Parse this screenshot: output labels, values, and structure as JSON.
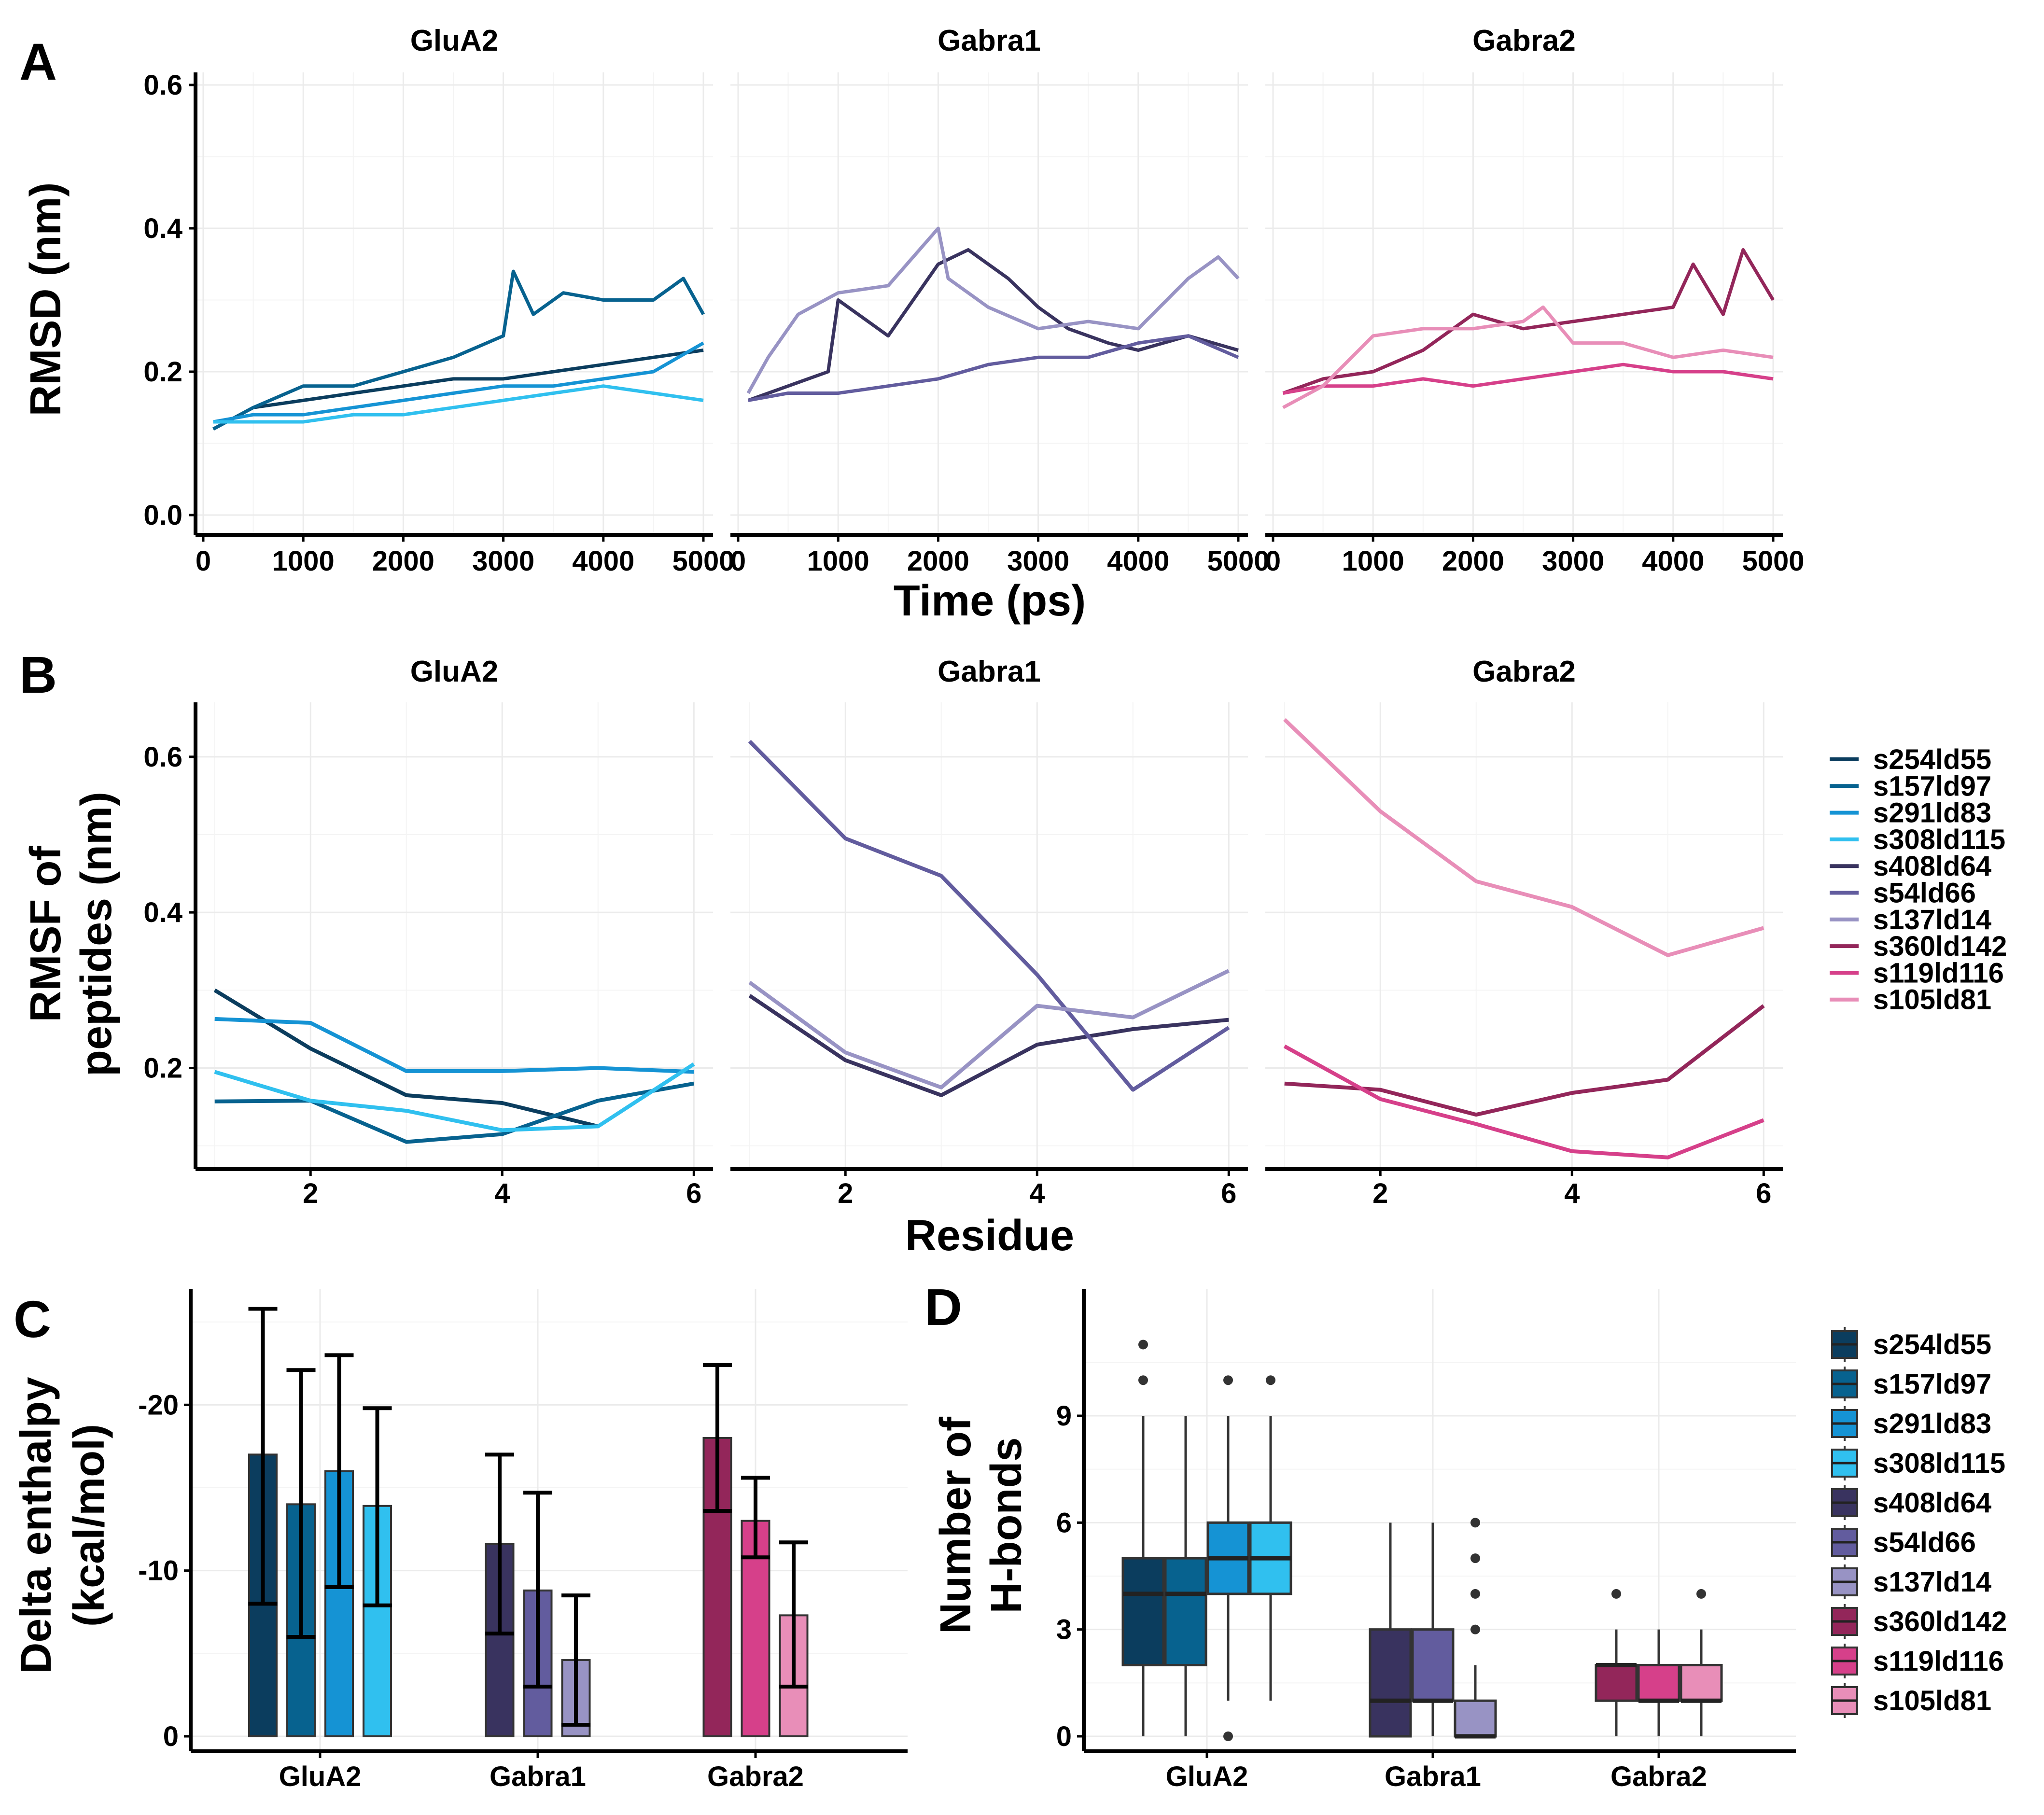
{
  "chart_data": [
    {
      "panel": "A",
      "type": "line",
      "title": "",
      "facets": [
        "GluA2",
        "Gabra1",
        "Gabra2"
      ],
      "xlabel": "Time (ps)",
      "ylabel": "RMSD (nm)",
      "xlim": [
        0,
        5000
      ],
      "ylim": [
        0,
        0.6
      ],
      "xticks": [
        0,
        1000,
        2000,
        3000,
        4000,
        5000
      ],
      "yticks": [
        0.0,
        0.2,
        0.4,
        0.6
      ],
      "ytick_labels": [
        "0.0",
        "0.2",
        "0.4",
        "0.6"
      ],
      "series": [
        {
          "name": "s254ld55",
          "facet": "GluA2",
          "x": [
            100,
            500,
            1000,
            1500,
            2000,
            2500,
            3000,
            3500,
            4000,
            4500,
            5000
          ],
          "values": [
            0.12,
            0.15,
            0.16,
            0.17,
            0.18,
            0.19,
            0.19,
            0.2,
            0.21,
            0.22,
            0.23
          ]
        },
        {
          "name": "s157ld97",
          "facet": "GluA2",
          "x": [
            100,
            500,
            1000,
            1500,
            2000,
            2500,
            3000,
            3100,
            3300,
            3600,
            4000,
            4500,
            4800,
            5000
          ],
          "values": [
            0.12,
            0.15,
            0.18,
            0.18,
            0.2,
            0.22,
            0.25,
            0.34,
            0.28,
            0.31,
            0.3,
            0.3,
            0.33,
            0.28
          ]
        },
        {
          "name": "s291ld83",
          "facet": "GluA2",
          "x": [
            100,
            500,
            1000,
            1500,
            2000,
            2500,
            3000,
            3500,
            4000,
            4500,
            5000
          ],
          "values": [
            0.13,
            0.14,
            0.14,
            0.15,
            0.16,
            0.17,
            0.18,
            0.18,
            0.19,
            0.2,
            0.24
          ]
        },
        {
          "name": "s308ld115",
          "facet": "GluA2",
          "x": [
            100,
            500,
            1000,
            1500,
            2000,
            2500,
            3000,
            3500,
            4000,
            4500,
            5000
          ],
          "values": [
            0.13,
            0.13,
            0.13,
            0.14,
            0.14,
            0.15,
            0.16,
            0.17,
            0.18,
            0.17,
            0.16
          ]
        },
        {
          "name": "s408ld64",
          "facet": "Gabra1",
          "x": [
            100,
            500,
            900,
            1000,
            1500,
            2000,
            2300,
            2700,
            3000,
            3300,
            3700,
            4000,
            4500,
            5000
          ],
          "values": [
            0.16,
            0.18,
            0.2,
            0.3,
            0.25,
            0.35,
            0.37,
            0.33,
            0.29,
            0.26,
            0.24,
            0.23,
            0.25,
            0.23
          ]
        },
        {
          "name": "s54ld66",
          "facet": "Gabra1",
          "x": [
            100,
            500,
            1000,
            1500,
            2000,
            2500,
            3000,
            3500,
            4000,
            4500,
            5000
          ],
          "values": [
            0.16,
            0.17,
            0.17,
            0.18,
            0.19,
            0.21,
            0.22,
            0.22,
            0.24,
            0.25,
            0.22
          ]
        },
        {
          "name": "s137ld14",
          "facet": "Gabra1",
          "x": [
            100,
            300,
            600,
            1000,
            1500,
            2000,
            2100,
            2500,
            3000,
            3500,
            4000,
            4500,
            4800,
            5000
          ],
          "values": [
            0.17,
            0.22,
            0.28,
            0.31,
            0.32,
            0.4,
            0.33,
            0.29,
            0.26,
            0.27,
            0.26,
            0.33,
            0.36,
            0.33
          ]
        },
        {
          "name": "s360ld142",
          "facet": "Gabra2",
          "x": [
            100,
            500,
            1000,
            1500,
            2000,
            2500,
            3000,
            3500,
            4000,
            4200,
            4500,
            4700,
            5000
          ],
          "values": [
            0.17,
            0.19,
            0.2,
            0.23,
            0.28,
            0.26,
            0.27,
            0.28,
            0.29,
            0.35,
            0.28,
            0.37,
            0.3
          ]
        },
        {
          "name": "s119ld116",
          "facet": "Gabra2",
          "x": [
            100,
            500,
            1000,
            1500,
            2000,
            2500,
            3000,
            3500,
            4000,
            4500,
            5000
          ],
          "values": [
            0.17,
            0.18,
            0.18,
            0.19,
            0.18,
            0.19,
            0.2,
            0.21,
            0.2,
            0.2,
            0.19
          ]
        },
        {
          "name": "s105ld81",
          "facet": "Gabra2",
          "x": [
            100,
            500,
            1000,
            1500,
            2000,
            2500,
            2700,
            3000,
            3500,
            4000,
            4500,
            5000
          ],
          "values": [
            0.15,
            0.18,
            0.25,
            0.26,
            0.26,
            0.27,
            0.29,
            0.24,
            0.24,
            0.22,
            0.23,
            0.22
          ]
        }
      ]
    },
    {
      "panel": "B",
      "type": "line",
      "title": "",
      "facets": [
        "GluA2",
        "Gabra1",
        "Gabra2"
      ],
      "xlabel": "Residue",
      "ylabel": "RMSF of peptides (nm)",
      "ylabel_lines": [
        "RMSF of",
        "peptides (nm)"
      ],
      "xlim": [
        0.8,
        6.2
      ],
      "ylim": [
        0.07,
        0.67
      ],
      "xticks": [
        2,
        4,
        6
      ],
      "yticks": [
        0.2,
        0.4,
        0.6
      ],
      "ytick_labels": [
        "0.2",
        "0.4",
        "0.6"
      ],
      "x": [
        1,
        2,
        3,
        4,
        5,
        6
      ],
      "series": [
        {
          "name": "s254ld55",
          "facet": "GluA2",
          "values": [
            0.3,
            0.225,
            0.165,
            0.155,
            0.125,
            null
          ]
        },
        {
          "name": "s157ld97",
          "facet": "GluA2",
          "values": [
            0.157,
            0.158,
            0.105,
            0.115,
            0.158,
            0.18
          ]
        },
        {
          "name": "s291ld83",
          "facet": "GluA2",
          "values": [
            0.263,
            0.258,
            0.196,
            0.196,
            0.2,
            0.195
          ]
        },
        {
          "name": "s308ld115",
          "facet": "GluA2",
          "values": [
            0.195,
            0.158,
            0.145,
            0.12,
            0.125,
            0.205
          ]
        },
        {
          "name": "s408ld64",
          "facet": "Gabra1",
          "values": [
            0.293,
            0.21,
            0.165,
            0.23,
            0.25,
            0.262
          ]
        },
        {
          "name": "s54ld66",
          "facet": "Gabra1",
          "values": [
            0.62,
            0.495,
            0.447,
            0.32,
            0.172,
            0.252
          ]
        },
        {
          "name": "s137ld14",
          "facet": "Gabra1",
          "values": [
            0.31,
            0.22,
            0.175,
            0.28,
            0.265,
            0.325
          ]
        },
        {
          "name": "s360ld142",
          "facet": "Gabra2",
          "values": [
            0.18,
            0.172,
            0.14,
            0.168,
            0.185,
            0.28
          ]
        },
        {
          "name": "s119ld116",
          "facet": "Gabra2",
          "values": [
            0.228,
            0.16,
            0.128,
            0.093,
            0.085,
            0.133
          ]
        },
        {
          "name": "s105ld81",
          "facet": "Gabra2",
          "values": [
            0.648,
            0.53,
            0.44,
            0.407,
            0.345,
            0.38
          ]
        }
      ]
    },
    {
      "panel": "C",
      "type": "bar",
      "title": "",
      "categories": [
        "GluA2",
        "Gabra1",
        "Gabra2"
      ],
      "xlabel": "",
      "ylabel": "Delta enthalpy (kcal/mol)",
      "ylabel_lines": [
        "Delta enthalpy",
        "(kcal/mol)"
      ],
      "ylim": [
        0,
        -27
      ],
      "yticks": [
        0,
        -10,
        -20
      ],
      "ytick_labels": [
        "0",
        "-10",
        "-20"
      ],
      "bars": [
        {
          "category": "GluA2",
          "name": "s254ld55",
          "value": -17.0,
          "err_low": -8.0,
          "err_high": -25.8
        },
        {
          "category": "GluA2",
          "name": "s157ld97",
          "value": -14.0,
          "err_low": -6.0,
          "err_high": -22.1
        },
        {
          "category": "GluA2",
          "name": "s291ld83",
          "value": -16.0,
          "err_low": -9.0,
          "err_high": -23.0
        },
        {
          "category": "GluA2",
          "name": "s308ld115",
          "value": -13.9,
          "err_low": -7.9,
          "err_high": -19.8
        },
        {
          "category": "Gabra1",
          "name": "s408ld64",
          "value": -11.6,
          "err_low": -6.2,
          "err_high": -17.0
        },
        {
          "category": "Gabra1",
          "name": "s54ld66",
          "value": -8.8,
          "err_low": -3.0,
          "err_high": -14.7
        },
        {
          "category": "Gabra1",
          "name": "s137ld14",
          "value": -4.6,
          "err_low": -0.7,
          "err_high": -8.5
        },
        {
          "category": "Gabra2",
          "name": "s360ld142",
          "value": -18.0,
          "err_low": -13.6,
          "err_high": -22.4
        },
        {
          "category": "Gabra2",
          "name": "s119ld116",
          "value": -13.0,
          "err_low": -10.8,
          "err_high": -15.6
        },
        {
          "category": "Gabra2",
          "name": "s105ld81",
          "value": -7.3,
          "err_low": -3.0,
          "err_high": -11.7
        }
      ]
    },
    {
      "panel": "D",
      "type": "box",
      "title": "",
      "categories": [
        "GluA2",
        "Gabra1",
        "Gabra2"
      ],
      "xlabel": "",
      "ylabel": "Number of H-bonds",
      "ylabel_lines": [
        "Number of",
        "H-bonds"
      ],
      "ylim": [
        -0.4,
        11.7
      ],
      "yticks": [
        0,
        3,
        6,
        9
      ],
      "ytick_labels": [
        "0",
        "3",
        "6",
        "9"
      ],
      "boxes": [
        {
          "category": "GluA2",
          "name": "s254ld55",
          "min": 0,
          "q1": 2,
          "median": 4,
          "q3": 5,
          "max": 9,
          "outliers": [
            10,
            11
          ]
        },
        {
          "category": "GluA2",
          "name": "s157ld97",
          "min": 0,
          "q1": 2,
          "median": 4,
          "q3": 5,
          "max": 9,
          "outliers": []
        },
        {
          "category": "GluA2",
          "name": "s291ld83",
          "min": 1,
          "q1": 4,
          "median": 5,
          "q3": 6,
          "max": 9,
          "outliers": [
            10,
            0
          ]
        },
        {
          "category": "GluA2",
          "name": "s308ld115",
          "min": 1,
          "q1": 4,
          "median": 5,
          "q3": 6,
          "max": 9,
          "outliers": [
            10
          ]
        },
        {
          "category": "Gabra1",
          "name": "s408ld64",
          "min": 0,
          "q1": 0,
          "median": 1,
          "q3": 3,
          "max": 6,
          "outliers": []
        },
        {
          "category": "Gabra1",
          "name": "s54ld66",
          "min": 0,
          "q1": 1,
          "median": 1,
          "q3": 3,
          "max": 6,
          "outliers": []
        },
        {
          "category": "Gabra1",
          "name": "s137ld14",
          "min": 0,
          "q1": 0,
          "median": 0,
          "q3": 1,
          "max": 2,
          "outliers": [
            3,
            4,
            5,
            6
          ]
        },
        {
          "category": "Gabra2",
          "name": "s360ld142",
          "min": 0,
          "q1": 1,
          "median": 2,
          "q3": 2,
          "max": 3,
          "outliers": [
            4
          ]
        },
        {
          "category": "Gabra2",
          "name": "s119ld116",
          "min": 0,
          "q1": 1,
          "median": 1,
          "q3": 2,
          "max": 3,
          "outliers": []
        },
        {
          "category": "Gabra2",
          "name": "s105ld81",
          "min": 0,
          "q1": 1,
          "median": 1,
          "q3": 2,
          "max": 3,
          "outliers": [
            4
          ]
        }
      ]
    }
  ],
  "legend": {
    "placement": "right",
    "entries": [
      {
        "name": "s254ld55",
        "color": "#0b3d5e"
      },
      {
        "name": "s157ld97",
        "color": "#07628f"
      },
      {
        "name": "s291ld83",
        "color": "#1593d4"
      },
      {
        "name": "s308ld115",
        "color": "#30c0ef"
      },
      {
        "name": "s408ld64",
        "color": "#39335f"
      },
      {
        "name": "s54ld66",
        "color": "#625c9e"
      },
      {
        "name": "s137ld14",
        "color": "#9893c4"
      },
      {
        "name": "s360ld142",
        "color": "#93265a"
      },
      {
        "name": "s119ld116",
        "color": "#d6408a"
      },
      {
        "name": "s105ld81",
        "color": "#e88eb8"
      }
    ]
  }
}
